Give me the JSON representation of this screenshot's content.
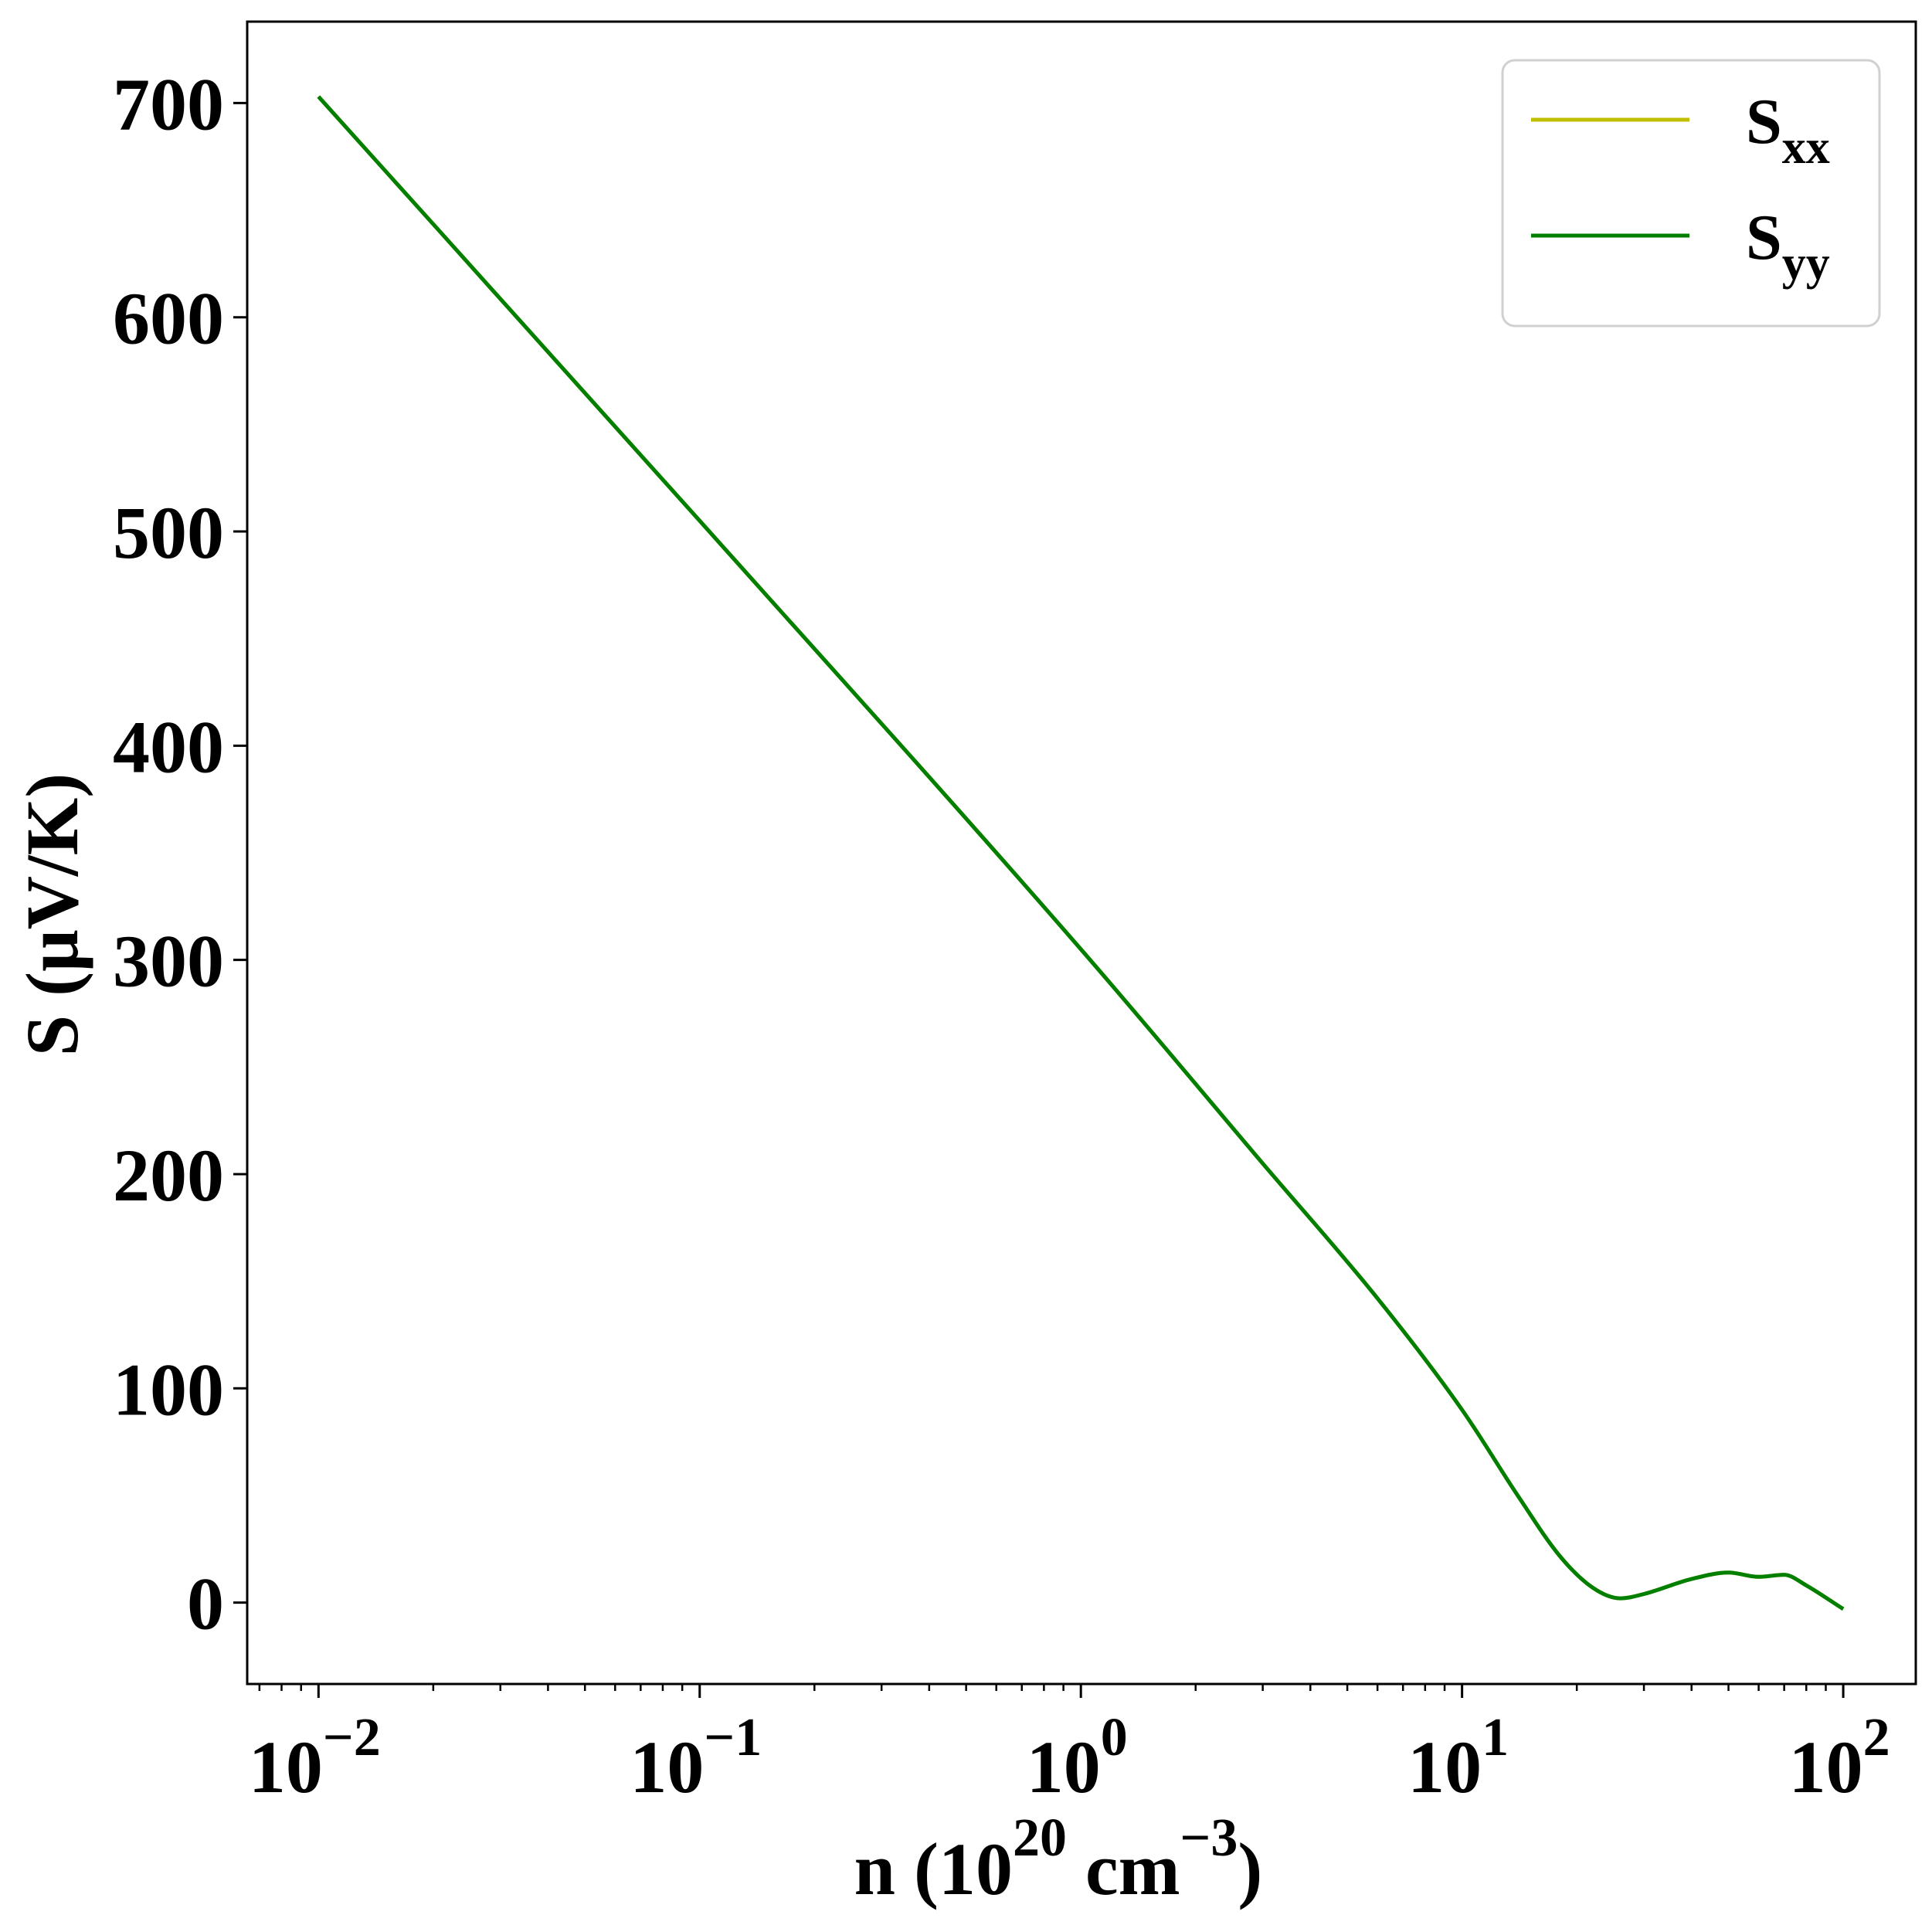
{
  "chart_data": {
    "type": "line",
    "xlabel": "n (10^20 cm^-3)",
    "xlabel_parts": {
      "base": "n (10",
      "sup1": "20",
      "mid": " cm",
      "sup2": "−3",
      "end": ")"
    },
    "ylabel": "S (μV/K)",
    "xscale": "log",
    "xlim": [
      0.0065,
      155
    ],
    "ylim": [
      -38,
      738
    ],
    "x_ticks": [
      {
        "value": 0.01,
        "base": "10",
        "exp": "−2"
      },
      {
        "value": 0.1,
        "base": "10",
        "exp": "−1"
      },
      {
        "value": 1,
        "base": "10",
        "exp": "0"
      },
      {
        "value": 10,
        "base": "10",
        "exp": "1"
      },
      {
        "value": 100,
        "base": "10",
        "exp": "2"
      }
    ],
    "y_ticks": [
      0,
      100,
      200,
      300,
      400,
      500,
      600,
      700
    ],
    "grid": false,
    "legend_position": "top-right",
    "series": [
      {
        "name": "S",
        "sub": "xx",
        "color": "#bfbf00",
        "x": [
          0.01,
          0.1,
          1,
          3,
          6,
          10,
          14,
          18,
          22,
          26,
          30,
          40,
          50,
          60,
          70,
          80,
          100
        ],
        "y": [
          703,
          505,
          305,
          205,
          142,
          90,
          50,
          22,
          7,
          2,
          4,
          11,
          14,
          12,
          13,
          8,
          -3
        ]
      },
      {
        "name": "S",
        "sub": "yy",
        "color": "#007f00",
        "x": [
          0.01,
          0.1,
          1,
          3,
          6,
          10,
          14,
          18,
          22,
          26,
          30,
          40,
          50,
          60,
          70,
          80,
          100
        ],
        "y": [
          703,
          505,
          305,
          205,
          142,
          90,
          50,
          22,
          7,
          2,
          4,
          11,
          14,
          12,
          13,
          8,
          -3
        ]
      }
    ]
  }
}
